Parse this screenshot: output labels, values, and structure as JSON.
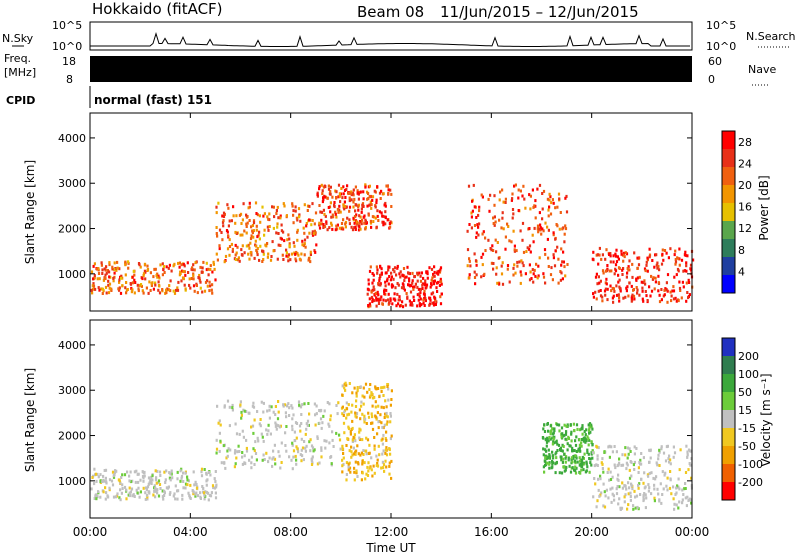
{
  "header": {
    "station": "Hokkaido (fitACF)",
    "beam": "Beam 08",
    "date_range": "11/Jun/2015 – 12/Jun/2015"
  },
  "top_strip": {
    "nsky_label": "N.Sky",
    "nsky_ticks": [
      "10^5",
      "10^0"
    ],
    "nsearch_label": "N.Search",
    "nsearch_ticks": [
      "10^5",
      "10^0"
    ],
    "freq_label_1": "Freq.",
    "freq_label_2": "[MHz]",
    "freq_ticks": [
      "18",
      "8"
    ],
    "nave_label": "Nave",
    "nave_ticks": [
      "60",
      "0"
    ],
    "cpid_label": "CPID",
    "cpid_text": "normal (fast) 151"
  },
  "colors": {
    "power": [
      "#0000ff",
      "#1f3fa0",
      "#2e7d5b",
      "#5aa64c",
      "#e6c000",
      "#f29500",
      "#f06010",
      "#e83018",
      "#ff0000"
    ],
    "velocity": [
      "#2030c0",
      "#2f7d4f",
      "#3ba83b",
      "#6ccc3a",
      "#c0c0c0",
      "#f0c820",
      "#f0a000",
      "#f06000",
      "#ff0000"
    ]
  },
  "chart_data": [
    {
      "type": "heatmap",
      "title": "",
      "xlabel": "Time UT",
      "ylabel": "Slant Range [km]",
      "x_ticks": [
        "00:00",
        "04:00",
        "08:00",
        "12:00",
        "16:00",
        "20:00",
        "00:00"
      ],
      "y_ticks": [
        1000,
        2000,
        3000,
        4000
      ],
      "xlim_hours": [
        0,
        24
      ],
      "ylim_km": [
        180,
        4550
      ],
      "colorbar": {
        "label": "Power [dB]",
        "ticks": [
          4,
          8,
          12,
          16,
          20,
          24,
          28
        ],
        "range": [
          0,
          30
        ]
      },
      "regions": [
        {
          "t0": 0,
          "t1": 5,
          "r0": 600,
          "r1": 1300,
          "level": 22
        },
        {
          "t0": 5,
          "t1": 9,
          "r0": 1300,
          "r1": 2600,
          "level": 22
        },
        {
          "t0": 9,
          "t1": 12,
          "r0": 2000,
          "r1": 3000,
          "level": 24
        },
        {
          "t0": 11,
          "t1": 14,
          "r0": 300,
          "r1": 1200,
          "level": 28
        },
        {
          "t0": 15,
          "t1": 19,
          "r0": 800,
          "r1": 3000,
          "level": 24
        },
        {
          "t0": 20,
          "t1": 24,
          "r0": 400,
          "r1": 1600,
          "level": 26
        }
      ]
    },
    {
      "type": "heatmap",
      "title": "",
      "xlabel": "Time UT",
      "ylabel": "Slant Range [km]",
      "x_ticks": [
        "00:00",
        "04:00",
        "08:00",
        "12:00",
        "16:00",
        "20:00",
        "00:00"
      ],
      "y_ticks": [
        1000,
        2000,
        3000,
        4000
      ],
      "xlim_hours": [
        0,
        24
      ],
      "ylim_km": [
        180,
        4550
      ],
      "colorbar": {
        "label": "Velocity [m s⁻¹]",
        "ticks": [
          200,
          100,
          50,
          15,
          -15,
          -50,
          -100,
          -200
        ]
      },
      "regions": [
        {
          "t0": 0,
          "t1": 5,
          "r0": 600,
          "r1": 1300,
          "level": 0
        },
        {
          "t0": 5,
          "t1": 10,
          "r0": 1300,
          "r1": 2800,
          "level": 0
        },
        {
          "t0": 10,
          "t1": 12,
          "r0": 1000,
          "r1": 3200,
          "level": -30
        },
        {
          "t0": 18,
          "t1": 20,
          "r0": 1200,
          "r1": 2300,
          "level": 40
        },
        {
          "t0": 20,
          "t1": 24,
          "r0": 400,
          "r1": 1800,
          "level": 0
        }
      ]
    }
  ]
}
